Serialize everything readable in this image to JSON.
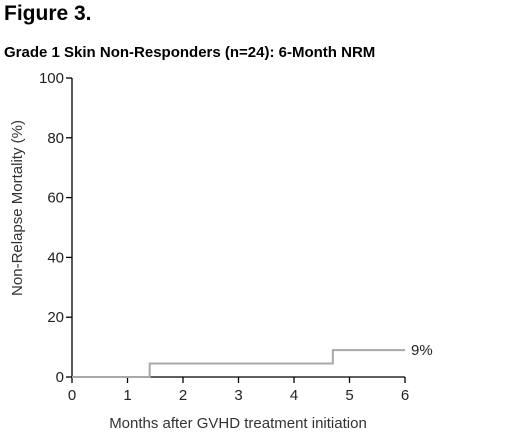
{
  "figure_label": "Figure 3.",
  "chart_data": {
    "type": "line",
    "title": "Grade 1 Skin Non-Responders (n=24): 6-Month NRM",
    "xlabel": "Months after GVHD treatment initiation",
    "ylabel": "Non-Relapse Mortality (%)",
    "xlim": [
      0,
      6
    ],
    "ylim": [
      0,
      100
    ],
    "xticks": [
      0,
      1,
      2,
      3,
      4,
      5,
      6
    ],
    "yticks": [
      0,
      20,
      40,
      60,
      80,
      100
    ],
    "step": true,
    "grid": false,
    "series": [
      {
        "color": "#a8a8a8",
        "x": [
          0,
          1.4,
          1.4,
          4.7,
          4.7,
          6
        ],
        "y": [
          0,
          0,
          4.5,
          4.5,
          9,
          9
        ]
      }
    ],
    "annotations": [
      {
        "text": "9%",
        "x": 6,
        "y": 9
      }
    ]
  }
}
